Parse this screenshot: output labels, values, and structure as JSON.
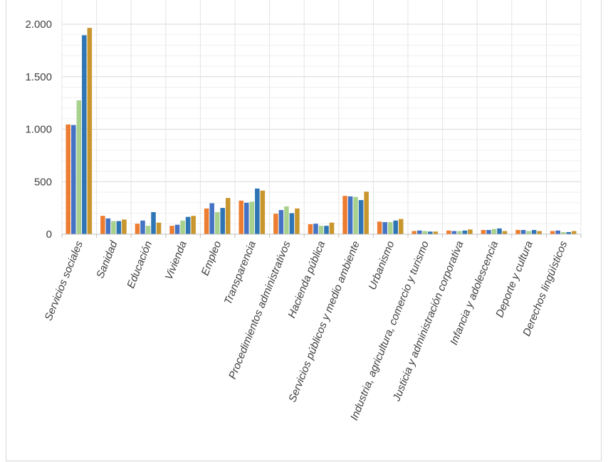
{
  "chart_data": {
    "type": "bar",
    "title": "",
    "xlabel": "",
    "ylabel": "",
    "ylim": [
      0,
      2100
    ],
    "yticks": [
      0,
      500,
      1000,
      1500,
      2000
    ],
    "ytick_labels": [
      "0",
      "500",
      "1.000",
      "1.500",
      "2.000"
    ],
    "grid": true,
    "legend": "none",
    "categories": [
      "Servicios sociales",
      "Sanidad",
      "Educación",
      "Vivienda",
      "Empleo",
      "Transparencia",
      "Procedimientos administrativos",
      "Hacienda pública",
      "Servicios públicos y medio ambiente",
      "Urbanismo",
      "Industria, agricultura, comercio y turismo",
      "Justicia y administración corporativa",
      "Infancia y adolescencia",
      "Deporte y cultura",
      "Derechos lingüísticos"
    ],
    "series": [
      {
        "color": "#ED7D31",
        "values": [
          1045,
          175,
          100,
          80,
          245,
          320,
          195,
          95,
          365,
          120,
          30,
          35,
          40,
          40,
          30
        ]
      },
      {
        "color": "#4472C4",
        "values": [
          1040,
          150,
          130,
          90,
          295,
          300,
          230,
          100,
          360,
          115,
          35,
          30,
          40,
          40,
          35
        ]
      },
      {
        "color": "#A9D18E",
        "values": [
          1275,
          125,
          80,
          130,
          210,
          310,
          265,
          80,
          355,
          115,
          30,
          30,
          50,
          30,
          20
        ]
      },
      {
        "color": "#2E75B6",
        "values": [
          1895,
          125,
          210,
          165,
          250,
          435,
          200,
          80,
          325,
          130,
          25,
          35,
          55,
          40,
          20
        ]
      },
      {
        "color": "#C9962E",
        "values": [
          1965,
          140,
          110,
          175,
          345,
          415,
          245,
          110,
          405,
          145,
          25,
          45,
          30,
          30,
          30
        ]
      }
    ]
  }
}
